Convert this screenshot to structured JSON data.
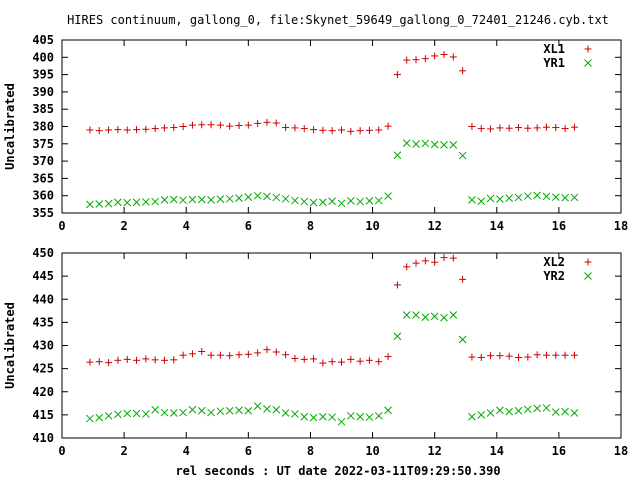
{
  "page": {
    "title": "HIRES continuum, gallong_0, file:Skynet_59649_gallong_0_72401_21246.cyb.txt",
    "xlabel": "rel seconds : UT date 2022-03-11T09:29:50.390"
  },
  "chart_data": [
    {
      "type": "scatter",
      "ylabel": "Uncalibrated",
      "xlim": [
        0,
        18
      ],
      "ylim": [
        355,
        405
      ],
      "xticks": [
        "0",
        "2",
        "4",
        "6",
        "8",
        "10",
        "12",
        "14",
        "16",
        "18"
      ],
      "yticks": [
        "355",
        "360",
        "365",
        "370",
        "375",
        "380",
        "385",
        "390",
        "395",
        "400",
        "405"
      ],
      "grid": false,
      "legend_position": "top-right",
      "x": [
        0.9,
        1.2,
        1.5,
        1.8,
        2.1,
        2.4,
        2.7,
        3.0,
        3.3,
        3.6,
        3.9,
        4.2,
        4.5,
        4.8,
        5.1,
        5.4,
        5.7,
        6.0,
        6.3,
        6.6,
        6.9,
        7.2,
        7.5,
        7.8,
        8.1,
        8.4,
        8.7,
        9.0,
        9.3,
        9.6,
        9.9,
        10.2,
        10.5,
        10.8,
        11.1,
        11.4,
        11.7,
        12.0,
        12.3,
        12.6,
        12.9,
        13.2,
        13.5,
        13.8,
        14.1,
        14.4,
        14.7,
        15.0,
        15.3,
        15.6,
        15.9,
        16.2,
        16.5
      ],
      "series": [
        {
          "name": "XL1",
          "color": "#cc0000",
          "marker": "plus",
          "values": [
            379.0,
            378.8,
            379.0,
            379.1,
            379.0,
            379.1,
            379.2,
            379.4,
            379.6,
            379.7,
            380.0,
            380.4,
            380.5,
            380.5,
            380.4,
            380.1,
            380.3,
            380.4,
            380.9,
            381.2,
            381.0,
            379.7,
            379.6,
            379.4,
            379.1,
            378.9,
            378.8,
            379.0,
            378.6,
            378.8,
            378.9,
            379.0,
            380.1,
            395.0,
            399.2,
            399.3,
            399.6,
            400.4,
            400.8,
            400.1,
            396.1,
            380.0,
            379.4,
            379.3,
            379.6,
            379.5,
            379.7,
            379.5,
            379.6,
            379.8,
            379.7,
            379.4,
            379.8
          ]
        },
        {
          "name": "YR1",
          "color": "#00aa00",
          "marker": "cross",
          "values": [
            357.5,
            357.6,
            357.7,
            358.1,
            358.0,
            358.1,
            358.2,
            358.3,
            358.8,
            358.9,
            358.7,
            358.9,
            358.9,
            358.8,
            359.0,
            359.1,
            359.3,
            359.6,
            360.0,
            359.8,
            359.5,
            359.1,
            358.6,
            358.3,
            358.0,
            358.1,
            358.4,
            357.8,
            358.5,
            358.3,
            358.5,
            358.6,
            359.9,
            371.7,
            375.2,
            374.9,
            375.1,
            374.8,
            374.7,
            374.7,
            371.6,
            358.8,
            358.4,
            359.2,
            359.0,
            359.3,
            359.5,
            359.9,
            360.1,
            359.8,
            359.6,
            359.4,
            359.5
          ]
        }
      ]
    },
    {
      "type": "scatter",
      "ylabel": "Uncalibrated",
      "xlim": [
        0,
        18
      ],
      "ylim": [
        410,
        450
      ],
      "xticks": [
        "0",
        "2",
        "4",
        "6",
        "8",
        "10",
        "12",
        "14",
        "16",
        "18"
      ],
      "yticks": [
        "410",
        "415",
        "420",
        "425",
        "430",
        "435",
        "440",
        "445",
        "450"
      ],
      "grid": false,
      "legend_position": "top-right",
      "x": [
        0.9,
        1.2,
        1.5,
        1.8,
        2.1,
        2.4,
        2.7,
        3.0,
        3.3,
        3.6,
        3.9,
        4.2,
        4.5,
        4.8,
        5.1,
        5.4,
        5.7,
        6.0,
        6.3,
        6.6,
        6.9,
        7.2,
        7.5,
        7.8,
        8.1,
        8.4,
        8.7,
        9.0,
        9.3,
        9.6,
        9.9,
        10.2,
        10.5,
        10.8,
        11.1,
        11.4,
        11.7,
        12.0,
        12.3,
        12.6,
        12.9,
        13.2,
        13.5,
        13.8,
        14.1,
        14.4,
        14.7,
        15.0,
        15.3,
        15.6,
        15.9,
        16.2,
        16.5
      ],
      "series": [
        {
          "name": "XL2",
          "color": "#cc0000",
          "marker": "plus",
          "values": [
            426.4,
            426.5,
            426.3,
            426.8,
            427.0,
            426.8,
            427.1,
            426.9,
            426.8,
            426.9,
            427.9,
            428.2,
            428.7,
            427.9,
            427.9,
            427.8,
            428.0,
            428.1,
            428.4,
            429.1,
            428.6,
            428.0,
            427.2,
            427.0,
            427.1,
            426.2,
            426.5,
            426.4,
            427.0,
            426.6,
            426.8,
            426.5,
            427.6,
            443.1,
            447.0,
            447.8,
            448.3,
            448.0,
            449.0,
            448.9,
            444.3,
            427.5,
            427.4,
            427.8,
            427.8,
            427.7,
            427.4,
            427.5,
            428.0,
            427.9,
            427.9,
            427.9,
            427.9
          ]
        },
        {
          "name": "YR2",
          "color": "#00aa00",
          "marker": "cross",
          "values": [
            414.2,
            414.4,
            414.8,
            415.1,
            415.3,
            415.3,
            415.2,
            416.1,
            415.5,
            415.4,
            415.5,
            416.1,
            415.9,
            415.5,
            415.8,
            415.9,
            416.0,
            415.9,
            416.9,
            416.3,
            416.1,
            415.4,
            415.2,
            414.6,
            414.4,
            414.6,
            414.5,
            413.5,
            414.8,
            414.6,
            414.5,
            414.8,
            416.0,
            432.0,
            436.6,
            436.6,
            436.1,
            436.3,
            436.0,
            436.6,
            431.3,
            414.6,
            415.0,
            415.4,
            416.0,
            415.7,
            415.9,
            416.2,
            416.4,
            416.5,
            415.6,
            415.7,
            415.4
          ]
        }
      ]
    }
  ]
}
